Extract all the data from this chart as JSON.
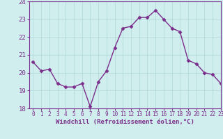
{
  "x": [
    0,
    1,
    2,
    3,
    4,
    5,
    6,
    7,
    8,
    9,
    10,
    11,
    12,
    13,
    14,
    15,
    16,
    17,
    18,
    19,
    20,
    21,
    22,
    23
  ],
  "y": [
    20.6,
    20.1,
    20.2,
    19.4,
    19.2,
    19.2,
    19.4,
    18.1,
    19.5,
    20.1,
    21.4,
    22.5,
    22.6,
    23.1,
    23.1,
    23.5,
    23.0,
    22.5,
    22.3,
    20.7,
    20.5,
    20.0,
    19.9,
    19.4
  ],
  "line_color": "#7b2d8b",
  "marker": "D",
  "marker_size": 2.5,
  "background_color": "#d0eeee",
  "grid_color": "#b0d8d8",
  "xlabel": "Windchill (Refroidissement éolien,°C)",
  "xlabel_color": "#7b2d8b",
  "tick_color": "#7b2d8b",
  "spine_color": "#7b2d8b",
  "ylim": [
    18,
    24
  ],
  "xlim": [
    -0.5,
    23
  ],
  "yticks": [
    18,
    19,
    20,
    21,
    22,
    23,
    24
  ],
  "xticks": [
    0,
    1,
    2,
    3,
    4,
    5,
    6,
    7,
    8,
    9,
    10,
    11,
    12,
    13,
    14,
    15,
    16,
    17,
    18,
    19,
    20,
    21,
    22,
    23
  ],
  "ytick_fontsize": 6.5,
  "xtick_fontsize": 5.5,
  "xlabel_fontsize": 6.5,
  "linewidth": 1.0
}
